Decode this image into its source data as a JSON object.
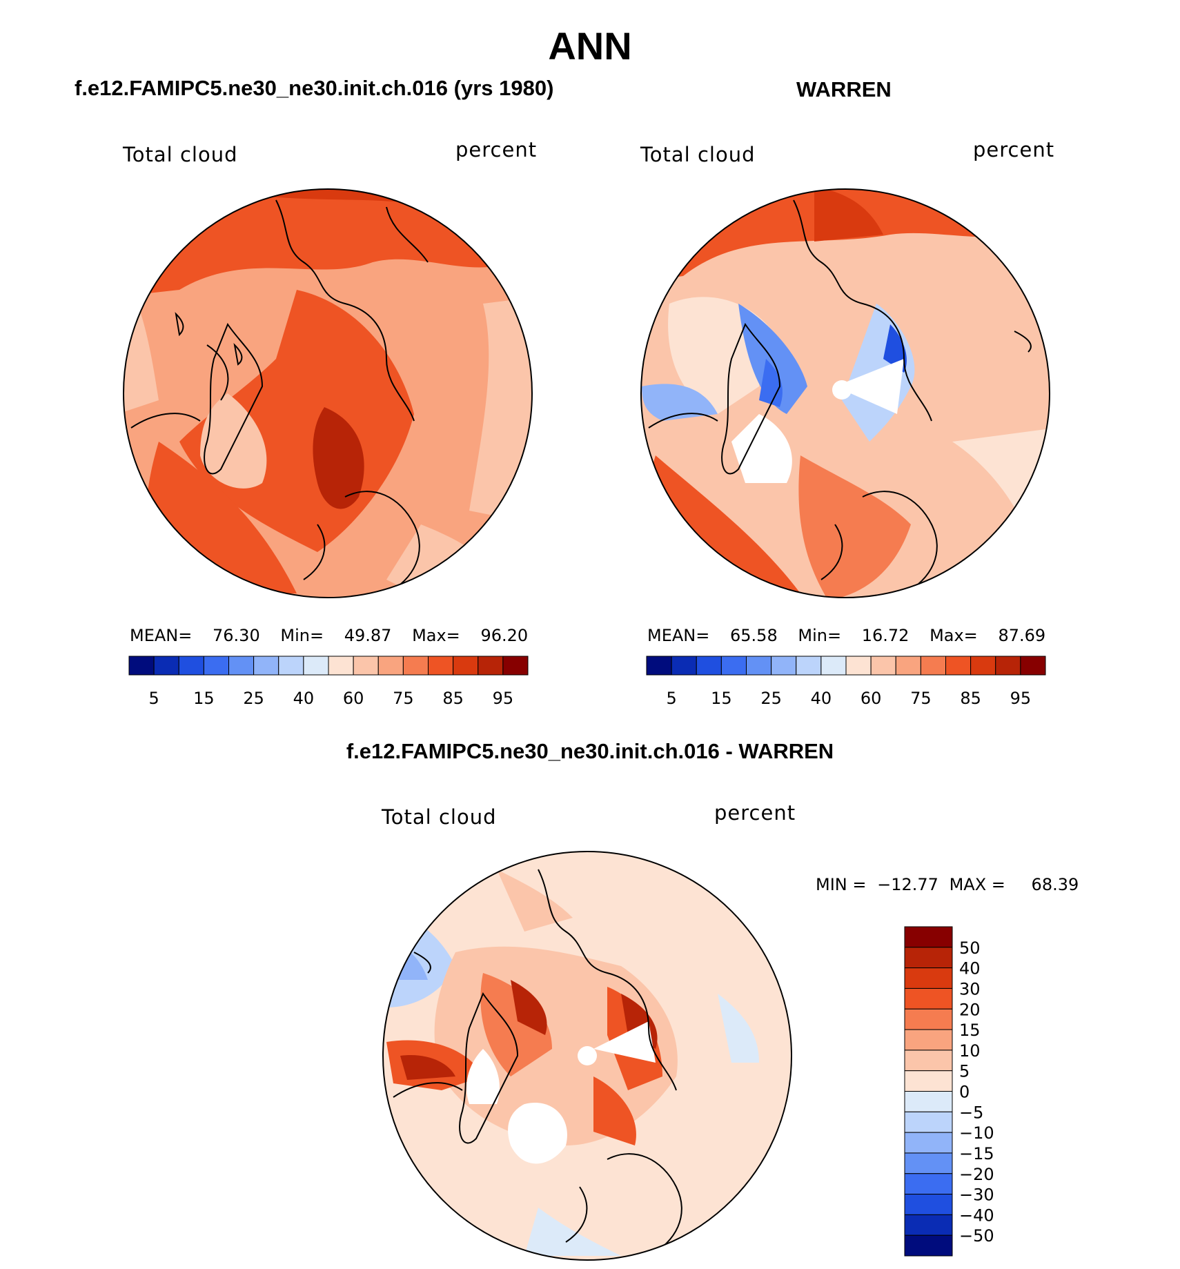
{
  "figure": {
    "season": "ANN",
    "panels": [
      {
        "id": "model",
        "case_title": "f.e12.FAMIPC5.ne30_ne30.init.ch.016 (yrs 1980)",
        "variable": "Total cloud",
        "units": "percent",
        "stats": {
          "mean_label": "MEAN=",
          "mean": "76.30",
          "min_label": "Min=",
          "min": "49.87",
          "max_label": "Max=",
          "max": "96.20"
        }
      },
      {
        "id": "obs",
        "case_title": "WARREN",
        "variable": "Total cloud",
        "units": "percent",
        "stats": {
          "mean_label": "MEAN=",
          "mean": "65.58",
          "min_label": "Min=",
          "min": "16.72",
          "max_label": "Max=",
          "max": "87.69"
        }
      },
      {
        "id": "diff",
        "case_title": "f.e12.FAMIPC5.ne30_ne30.init.ch.016 - WARREN",
        "variable": "Total cloud",
        "units": "percent",
        "stats": {
          "min_label": "MIN =",
          "min": "−12.77",
          "max_label": "MAX =",
          "max": "68.39"
        }
      }
    ]
  },
  "chart_data": [
    {
      "type": "heatmap",
      "projection": "north polar stereographic",
      "title": "f.e12.FAMIPC5.ne30_ne30.init.ch.016 (yrs 1980)",
      "variable": "Total cloud",
      "units": "percent",
      "colorbar": {
        "orientation": "horizontal",
        "levels": [
          5,
          10,
          15,
          20,
          25,
          30,
          40,
          50,
          60,
          70,
          75,
          80,
          85,
          90,
          95
        ],
        "tick_labels": [
          "5",
          "15",
          "25",
          "40",
          "60",
          "75",
          "85",
          "95"
        ],
        "colors": [
          "#000c7d",
          "#0a2cb4",
          "#1f4fe0",
          "#3b6df1",
          "#6391f5",
          "#91b4f9",
          "#bcd4fb",
          "#dceaf9",
          "#fde3d3",
          "#fbc5aa",
          "#f9a47f",
          "#f57c50",
          "#ee5424",
          "#d93a0f",
          "#b72407",
          "#870000"
        ]
      },
      "mean": 76.3,
      "min": 49.87,
      "max": 96.2
    },
    {
      "type": "heatmap",
      "projection": "north polar stereographic",
      "title": "WARREN",
      "variable": "Total cloud",
      "units": "percent",
      "colorbar": {
        "orientation": "horizontal",
        "levels": [
          5,
          10,
          15,
          20,
          25,
          30,
          40,
          50,
          60,
          70,
          75,
          80,
          85,
          90,
          95
        ],
        "tick_labels": [
          "5",
          "15",
          "25",
          "40",
          "60",
          "75",
          "85",
          "95"
        ],
        "colors": [
          "#000c7d",
          "#0a2cb4",
          "#1f4fe0",
          "#3b6df1",
          "#6391f5",
          "#91b4f9",
          "#bcd4fb",
          "#dceaf9",
          "#fde3d3",
          "#fbc5aa",
          "#f9a47f",
          "#f57c50",
          "#ee5424",
          "#d93a0f",
          "#b72407",
          "#870000"
        ]
      },
      "mean": 65.58,
      "min": 16.72,
      "max": 87.69
    },
    {
      "type": "heatmap",
      "projection": "north polar stereographic",
      "title": "f.e12.FAMIPC5.ne30_ne30.init.ch.016 - WARREN",
      "variable": "Total cloud",
      "units": "percent",
      "colorbar": {
        "orientation": "vertical",
        "levels": [
          -50,
          -40,
          -30,
          -20,
          -15,
          -10,
          -5,
          0,
          5,
          10,
          15,
          20,
          30,
          40,
          50
        ],
        "tick_labels": [
          "50",
          "40",
          "30",
          "20",
          "15",
          "10",
          "5",
          "0",
          "−5",
          "−10",
          "−15",
          "−20",
          "−30",
          "−40",
          "−50"
        ],
        "colors": [
          "#000c7d",
          "#0a2cb4",
          "#1f4fe0",
          "#3b6df1",
          "#6391f5",
          "#91b4f9",
          "#bcd4fb",
          "#dceaf9",
          "#fde3d3",
          "#fbc5aa",
          "#f9a47f",
          "#f57c50",
          "#ee5424",
          "#d93a0f",
          "#b72407",
          "#870000"
        ]
      },
      "min": -12.77,
      "max": 68.39
    }
  ]
}
